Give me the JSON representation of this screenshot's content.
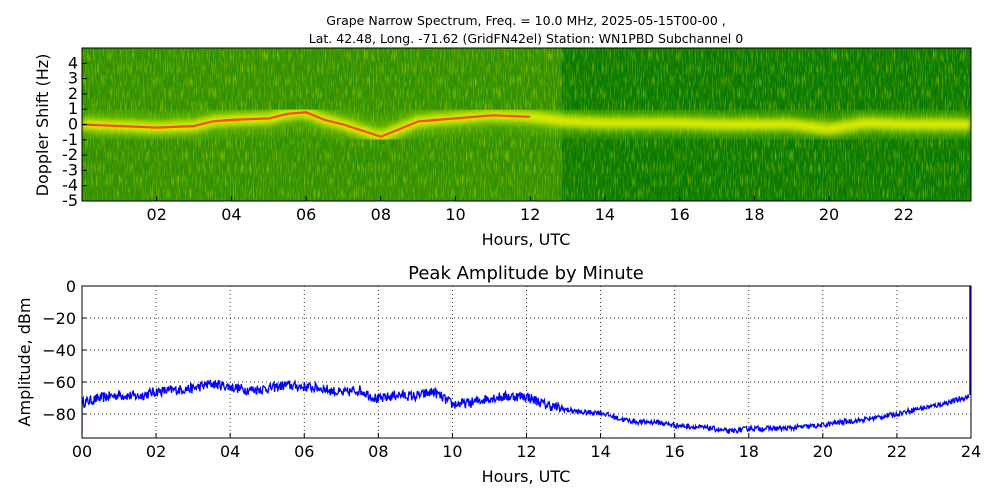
{
  "figure": {
    "title_line1": "Grape Narrow Spectrum, Freq. = 10.0 MHz, 2025-05-15T00-00 ,",
    "title_line2": "Lat.  42.48, Long. -71.62 (GridFN42el) Station: WN1PBD Subchannel 0"
  },
  "chart_data": [
    {
      "type": "heatmap",
      "xlabel": "Hours, UTC",
      "ylabel": "Doppler Shift (Hz)",
      "xlim": [
        0,
        23.8
      ],
      "ylim": [
        -5,
        5
      ],
      "x_tick_labels": [
        "02",
        "04",
        "06",
        "08",
        "10",
        "12",
        "14",
        "16",
        "18",
        "20",
        "22"
      ],
      "x_tick_values": [
        2,
        4,
        6,
        8,
        10,
        12,
        14,
        16,
        18,
        20,
        22
      ],
      "y_tick_labels": [
        "4",
        "3",
        "2",
        "1",
        "0",
        "-1",
        "-2",
        "-3",
        "-4",
        "-5"
      ],
      "y_tick_values": [
        4,
        3,
        2,
        1,
        0,
        -1,
        -2,
        -3,
        -4,
        -5
      ],
      "colors": {
        "background": "#0a7a00",
        "mid": "#7ac800",
        "high": "#e8f000",
        "peak": "#ff3000"
      },
      "doppler_trace": {
        "hours": [
          0,
          1,
          2,
          3,
          3.5,
          4,
          5,
          5.5,
          6,
          6.5,
          7,
          7.5,
          8,
          8.5,
          9,
          9.5,
          10,
          11,
          12,
          13,
          14,
          15,
          16,
          17,
          18,
          19,
          20,
          21,
          22,
          23,
          23.8
        ],
        "doppler": [
          0,
          -0.1,
          -0.2,
          -0.1,
          0.2,
          0.3,
          0.4,
          0.7,
          0.8,
          0.3,
          0.0,
          -0.4,
          -0.8,
          -0.3,
          0.2,
          0.3,
          0.4,
          0.6,
          0.5,
          0.2,
          0.1,
          0.1,
          0.1,
          0.0,
          0.0,
          0.0,
          -0.3,
          0.1,
          0.0,
          0.0,
          0.0
        ]
      }
    },
    {
      "type": "line",
      "title": "Peak Amplitude by Minute",
      "xlabel": "Hours, UTC",
      "ylabel": "Amplitude, dBm",
      "xlim": [
        0,
        24
      ],
      "ylim": [
        -95,
        0
      ],
      "grid": true,
      "line_color": "#0000ff",
      "x_tick_labels": [
        "00",
        "02",
        "04",
        "06",
        "08",
        "10",
        "12",
        "14",
        "16",
        "18",
        "20",
        "22",
        "24"
      ],
      "x_tick_values": [
        0,
        2,
        4,
        6,
        8,
        10,
        12,
        14,
        16,
        18,
        20,
        22,
        24
      ],
      "y_tick_labels": [
        "0",
        "−20",
        "−40",
        "−60",
        "−80"
      ],
      "y_tick_values": [
        0,
        -20,
        -40,
        -60,
        -80
      ],
      "series": [
        {
          "x": [
            0,
            0.5,
            1,
            1.5,
            2,
            2.5,
            3,
            3.5,
            4,
            4.5,
            5,
            5.5,
            6,
            6.5,
            7,
            7.5,
            8,
            8.5,
            9,
            9.5,
            10,
            10.5,
            11,
            11.5,
            12,
            12.5,
            13,
            13.5,
            14,
            14.5,
            15,
            15.5,
            16,
            16.5,
            17,
            17.5,
            18,
            18.5,
            19,
            19.5,
            20,
            20.5,
            21,
            21.5,
            22,
            22.5,
            23,
            23.5,
            23.95
          ],
          "y": [
            -73,
            -70,
            -68,
            -69,
            -66,
            -65,
            -64,
            -61,
            -63,
            -65,
            -64,
            -62,
            -63,
            -64,
            -67,
            -65,
            -71,
            -68,
            -69,
            -66,
            -74,
            -73,
            -70,
            -69,
            -69,
            -74,
            -77,
            -79,
            -79,
            -83,
            -85,
            -85,
            -87,
            -88,
            -89,
            -91,
            -89,
            -89,
            -89,
            -88,
            -87,
            -85,
            -84,
            -82,
            -80,
            -77,
            -75,
            -72,
            -69
          ]
        }
      ]
    }
  ]
}
